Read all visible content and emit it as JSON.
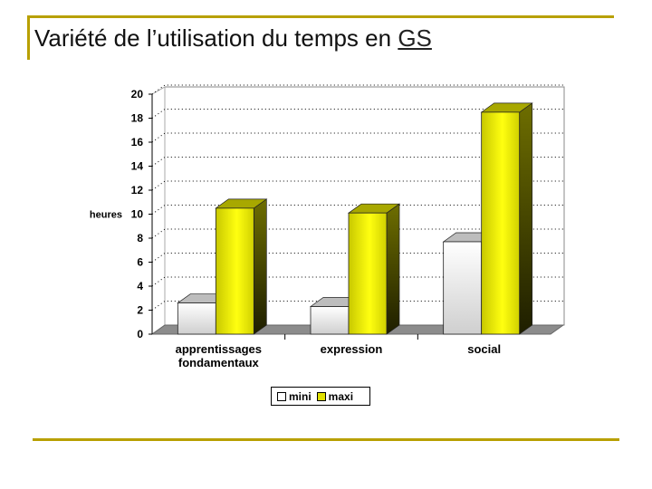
{
  "slide": {
    "title_main": "Variété de l’utilisation du temps en ",
    "title_link": "GS"
  },
  "colors": {
    "accent_rule": "#b8a000",
    "mini": "#ffffff",
    "maxi": "#e0e000"
  },
  "chart_data": {
    "type": "bar",
    "title": "",
    "xlabel": "",
    "ylabel": "heures",
    "ylim": [
      0,
      20
    ],
    "yticks": [
      0,
      2,
      4,
      6,
      8,
      10,
      12,
      14,
      16,
      18,
      20
    ],
    "categories": [
      [
        "apprentissages",
        "fondamentaux"
      ],
      [
        "expression"
      ],
      [
        "social"
      ]
    ],
    "series": [
      {
        "name": "mini",
        "values": [
          2.6,
          2.3,
          7.7
        ]
      },
      {
        "name": "maxi",
        "values": [
          10.5,
          10.1,
          18.5
        ]
      }
    ],
    "grid": true,
    "three_d": true,
    "legend_position": "bottom"
  }
}
